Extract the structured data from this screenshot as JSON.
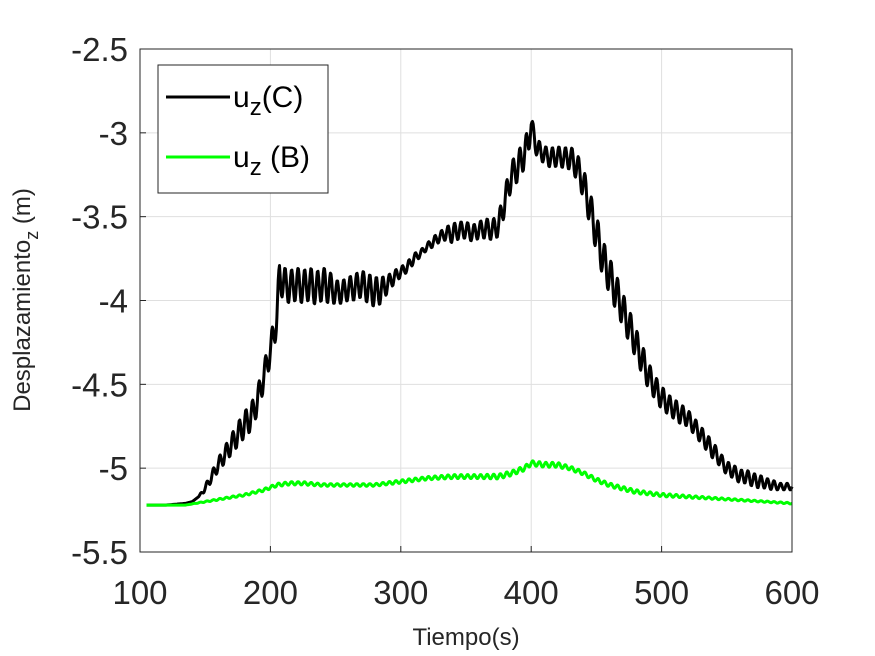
{
  "chart_data": {
    "type": "line",
    "title": "",
    "xlabel": "Tiempo(s)",
    "ylabel": {
      "main": "Desplazamiento",
      "sub": "z",
      "unit": " (m)"
    },
    "xlim": [
      100,
      600
    ],
    "ylim": [
      -5.5,
      -2.5
    ],
    "xticks": [
      100,
      200,
      300,
      400,
      500,
      600
    ],
    "yticks": [
      -2.5,
      -3,
      -3.5,
      -4,
      -4.5,
      -5,
      -5.5
    ],
    "xtick_labels": [
      "100",
      "200",
      "300",
      "400",
      "500",
      "600"
    ],
    "ytick_labels": [
      "-2.5",
      "-3",
      "-3.5",
      "-4",
      "-4.5",
      "-5",
      "-5.5"
    ],
    "grid": true,
    "legend_position": "top-left",
    "series": [
      {
        "name": "u_z(C)",
        "label_main": "u",
        "label_sub": "z",
        "label_rest": "(C)",
        "color": "#000000",
        "x": [
          105,
          120,
          135,
          140,
          145,
          150,
          155,
          160,
          165,
          170,
          175,
          180,
          185,
          190,
          195,
          200,
          205,
          207,
          210,
          215,
          220,
          225,
          230,
          235,
          240,
          245,
          250,
          255,
          260,
          265,
          270,
          275,
          280,
          285,
          290,
          295,
          300,
          305,
          310,
          315,
          320,
          325,
          330,
          335,
          340,
          345,
          350,
          355,
          360,
          365,
          370,
          375,
          380,
          385,
          390,
          395,
          398,
          400,
          403,
          405,
          410,
          415,
          420,
          425,
          430,
          435,
          440,
          445,
          450,
          455,
          460,
          465,
          470,
          475,
          480,
          485,
          490,
          495,
          500,
          505,
          510,
          515,
          520,
          525,
          530,
          535,
          540,
          545,
          550,
          555,
          560,
          565,
          570,
          575,
          580,
          585,
          590,
          595,
          600
        ],
        "y": [
          -5.22,
          -5.22,
          -5.21,
          -5.2,
          -5.17,
          -5.12,
          -5.05,
          -4.98,
          -4.92,
          -4.86,
          -4.8,
          -4.74,
          -4.7,
          -4.6,
          -4.45,
          -4.3,
          -4.1,
          -3.85,
          -3.9,
          -3.92,
          -3.9,
          -3.92,
          -3.9,
          -3.93,
          -3.9,
          -3.92,
          -3.95,
          -3.95,
          -3.93,
          -3.92,
          -3.9,
          -3.93,
          -3.95,
          -3.94,
          -3.9,
          -3.86,
          -3.83,
          -3.8,
          -3.75,
          -3.72,
          -3.68,
          -3.65,
          -3.62,
          -3.6,
          -3.6,
          -3.58,
          -3.58,
          -3.6,
          -3.58,
          -3.57,
          -3.58,
          -3.55,
          -3.4,
          -3.25,
          -3.2,
          -3.12,
          -3.05,
          -2.95,
          -3.05,
          -3.1,
          -3.13,
          -3.15,
          -3.14,
          -3.15,
          -3.15,
          -3.2,
          -3.3,
          -3.45,
          -3.6,
          -3.75,
          -3.85,
          -3.95,
          -4.05,
          -4.15,
          -4.25,
          -4.35,
          -4.45,
          -4.52,
          -4.58,
          -4.62,
          -4.65,
          -4.68,
          -4.7,
          -4.75,
          -4.8,
          -4.85,
          -4.9,
          -4.95,
          -5.0,
          -5.02,
          -5.05,
          -5.05,
          -5.07,
          -5.08,
          -5.09,
          -5.1,
          -5.11,
          -5.11,
          -5.11
        ],
        "osc": [
          0,
          0,
          0,
          0,
          0,
          0.02,
          0.03,
          0.04,
          0.05,
          0.06,
          0.07,
          0.08,
          0.08,
          0.08,
          0.08,
          0.08,
          0.1,
          0.1,
          0.1,
          0.1,
          0.1,
          0.1,
          0.1,
          0.1,
          0.1,
          0.1,
          0.07,
          0.07,
          0.07,
          0.08,
          0.08,
          0.09,
          0.09,
          0.08,
          0.05,
          0.04,
          0.03,
          0.03,
          0.03,
          0.02,
          0.02,
          0.03,
          0.03,
          0.04,
          0.06,
          0.05,
          0.05,
          0.05,
          0.05,
          0.06,
          0.06,
          0.07,
          0.08,
          0.08,
          0.09,
          0.09,
          0.08,
          0.05,
          0.06,
          0.06,
          0.05,
          0.06,
          0.06,
          0.06,
          0.07,
          0.08,
          0.09,
          0.1,
          0.11,
          0.11,
          0.11,
          0.11,
          0.1,
          0.1,
          0.09,
          0.09,
          0.08,
          0.07,
          0.07,
          0.06,
          0.06,
          0.06,
          0.05,
          0.05,
          0.05,
          0.05,
          0.05,
          0.04,
          0.04,
          0.04,
          0.04,
          0.04,
          0.04,
          0.04,
          0.03,
          0.03,
          0.02,
          0.02,
          0.02
        ]
      },
      {
        "name": "u_z (B)",
        "label_main": "u",
        "label_sub": "z",
        "label_rest": " (B)",
        "color": "#00ff00",
        "x": [
          105,
          120,
          135,
          150,
          165,
          180,
          195,
          205,
          215,
          225,
          240,
          260,
          280,
          300,
          320,
          340,
          360,
          375,
          385,
          395,
          400,
          410,
          420,
          430,
          440,
          450,
          460,
          470,
          480,
          490,
          500,
          520,
          540,
          560,
          580,
          600
        ],
        "y": [
          -5.22,
          -5.22,
          -5.22,
          -5.2,
          -5.18,
          -5.16,
          -5.13,
          -5.1,
          -5.09,
          -5.09,
          -5.1,
          -5.1,
          -5.1,
          -5.08,
          -5.06,
          -5.05,
          -5.05,
          -5.05,
          -5.03,
          -5.0,
          -4.97,
          -4.98,
          -4.98,
          -5.0,
          -5.03,
          -5.07,
          -5.1,
          -5.12,
          -5.14,
          -5.15,
          -5.16,
          -5.17,
          -5.18,
          -5.19,
          -5.2,
          -5.21
        ],
        "osc": [
          0,
          0,
          0,
          0.003,
          0.005,
          0.006,
          0.008,
          0.01,
          0.01,
          0.01,
          0.008,
          0.008,
          0.008,
          0.01,
          0.01,
          0.012,
          0.012,
          0.015,
          0.015,
          0.015,
          0.015,
          0.015,
          0.015,
          0.012,
          0.012,
          0.012,
          0.012,
          0.012,
          0.012,
          0.01,
          0.01,
          0.008,
          0.006,
          0.005,
          0.004,
          0.004
        ]
      }
    ]
  }
}
